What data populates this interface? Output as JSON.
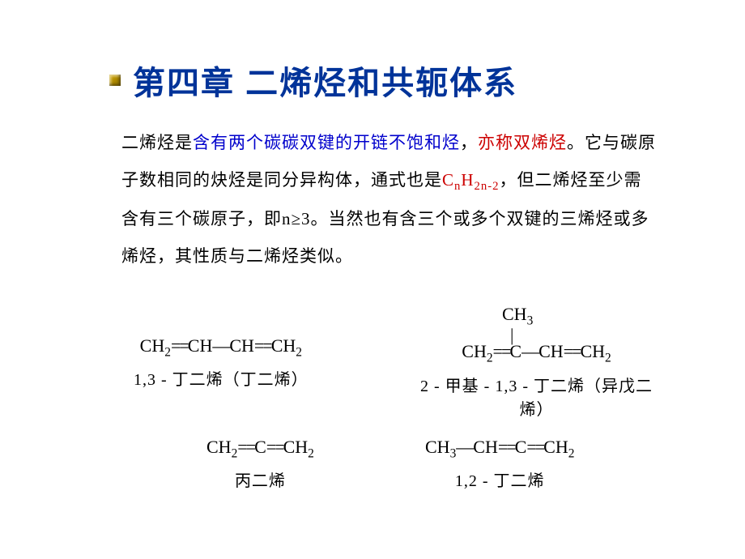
{
  "title": {
    "text": "第四章 二烯烃和共轭体系",
    "color": "#003399",
    "fontsize": 40
  },
  "body": {
    "seg1": "二烯烃是",
    "seg2_blue": "含有两个碳碳双键的开链不饱和烃",
    "seg3": "，",
    "seg4_red": "亦称双烯烃",
    "seg5": "。它与碳原子数相同的炔烃是同分异构体，通式也是",
    "formula_base": "C",
    "formula_sub1": "n",
    "formula_mid": "H",
    "formula_sub2": "2n-2",
    "seg6": "，但二烯烃至少需含有三个碳原子，即n≥3。当然也有含三个或多个双键的三烯烃或多烯烃，其性质与二烯烃类似。",
    "fontsize": 21,
    "text_color": "#000000"
  },
  "compounds": {
    "structure_fontsize": 22,
    "name_fontsize": 20,
    "c1": {
      "structure_html": "CH<sub>2</sub><span class='dbond'>==</span>CH<span class='sbond'>—</span>CH<span class='dbond'>==</span>CH<sub>2</sub>",
      "name": "1,3 - 丁二烯（丁二烯）"
    },
    "c2": {
      "top": "CH<sub>3</sub>",
      "mid": "|",
      "bottom": "CH<sub>2</sub><span class='dbond'>==</span>C<span class='sbond'>—</span>CH<span class='dbond'>==</span>CH<sub>2</sub>",
      "name": "2 - 甲基 - 1,3 - 丁二烯（异戊二烯）"
    },
    "c3": {
      "structure_html": "CH<sub>2</sub><span class='dbond'>==</span>C<span class='dbond'>==</span>CH<sub>2</sub>",
      "name": "丙二烯"
    },
    "c4": {
      "structure_html": "CH<sub>3</sub><span class='sbond'>—</span>CH<span class='dbond'>==</span>C<span class='dbond'>==</span>CH<sub>2</sub>",
      "name": "1,2 - 丁二烯"
    }
  },
  "colors": {
    "background": "#ffffff",
    "title": "#003399",
    "body": "#000000",
    "highlight_blue": "#0000cc",
    "highlight_red": "#cc0000"
  }
}
